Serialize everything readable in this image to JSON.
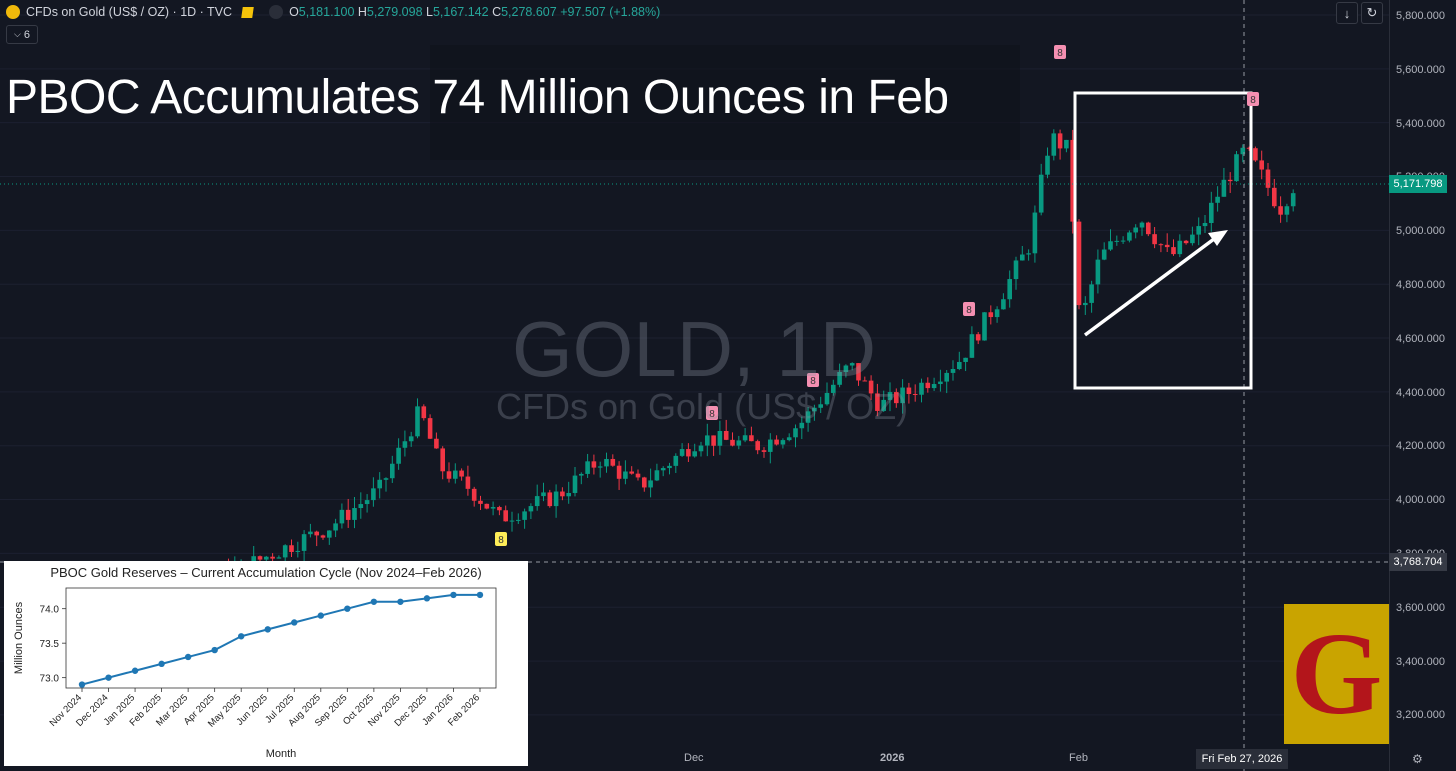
{
  "header": {
    "symbol": "CFDs on Gold (US$ / OZ) · 1D · TVC",
    "open_label": "O",
    "open_value": "5,181.100",
    "high_label": "H",
    "high_value": "5,279.098",
    "low_label": "L",
    "low_value": "5,167.142",
    "close_label": "C",
    "close_value": "5,278.607",
    "change": "+97.507 (+1.88%)"
  },
  "indicators": {
    "count": "6"
  },
  "overlay": {
    "headline": "PBOC Accumulates 74 Million Ounces in Feb",
    "watermark_title": "GOLD, 1D",
    "watermark_subtitle": "CFDs on Gold (US$ / OZ)"
  },
  "price_axis": {
    "ticks": [
      "5,800.000",
      "5,600.000",
      "5,400.000",
      "5,200.000",
      "5,000.000",
      "4,800.000",
      "4,600.000",
      "4,400.000",
      "4,200.000",
      "4,000.000",
      "3,800.000",
      "3,600.000",
      "3,400.000",
      "3,200.000"
    ],
    "last_price": "5,171.798",
    "crosshair_price": "3,768.704",
    "last_price_color": "#089981"
  },
  "time_axis": {
    "ticks": [
      "Dec",
      "2026",
      "Feb"
    ],
    "crosshair_date": "Fri Feb 27, 2026"
  },
  "markers": [
    "8",
    "8",
    "8",
    "8",
    "8",
    "8",
    "8",
    "8"
  ],
  "colors": {
    "up": "#089981",
    "down": "#f23645",
    "background": "#131722"
  },
  "logo": {
    "letter": "G"
  },
  "chart_data": [
    {
      "type": "line",
      "title": "PBOC Gold Reserves – Current Accumulation Cycle (Nov 2024–Feb 2026)",
      "xlabel": "Month",
      "ylabel": "Million Ounces",
      "categories": [
        "Nov 2024",
        "Dec 2024",
        "Jan 2025",
        "Feb 2025",
        "Mar 2025",
        "Apr 2025",
        "May 2025",
        "Jun 2025",
        "Jul 2025",
        "Aug 2025",
        "Sep 2025",
        "Oct 2025",
        "Nov 2025",
        "Dec 2025",
        "Jan 2026",
        "Feb 2026"
      ],
      "values": [
        72.9,
        73.0,
        73.1,
        73.2,
        73.3,
        73.4,
        73.6,
        73.7,
        73.8,
        73.9,
        74.0,
        74.1,
        74.1,
        74.15,
        74.2,
        74.2
      ],
      "yticks": [
        "73.0",
        "73.5",
        "74.0"
      ],
      "ylim": [
        72.85,
        74.3
      ],
      "grid": false
    }
  ]
}
